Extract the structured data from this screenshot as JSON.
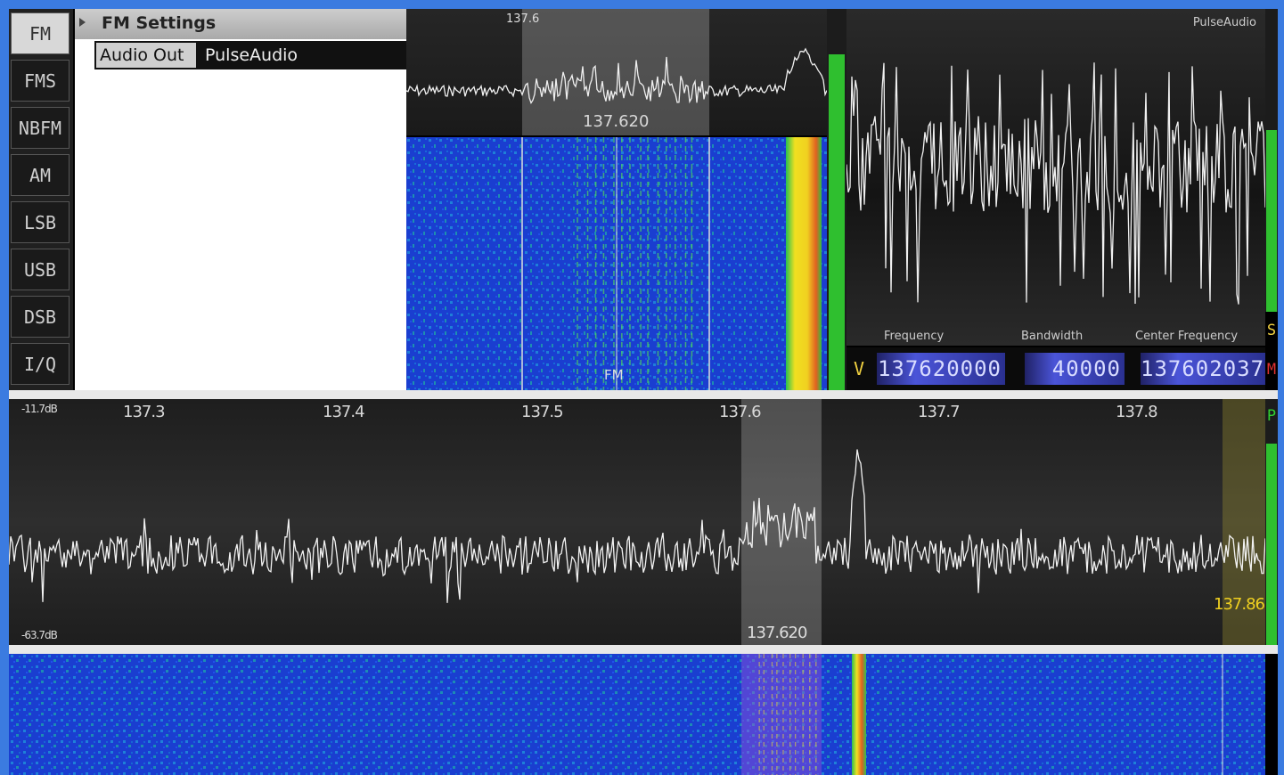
{
  "modes": [
    "FM",
    "FMS",
    "NBFM",
    "AM",
    "LSB",
    "USB",
    "DSB",
    "I/Q"
  ],
  "active_mode": "FM",
  "settings": {
    "title": "FM Settings",
    "rows": [
      {
        "key": "Audio Out",
        "value": "PulseAudio"
      }
    ]
  },
  "demod_view": {
    "top_tick": "137.6",
    "center_freq_label": "137.620",
    "mode_label": "FM"
  },
  "audio_scope": {
    "device_label": "PulseAudio"
  },
  "freq_controls": {
    "labels": {
      "frequency": "Frequency",
      "bandwidth": "Bandwidth",
      "center": "Center Frequency"
    },
    "v_label": "V",
    "frequency": "137620000",
    "bandwidth": "40000",
    "center_frequency": "137602037",
    "m_label": "M",
    "s_label": "S",
    "p_label": "P"
  },
  "main_spectrum": {
    "db_top": "-11.7dB",
    "db_bottom": "-63.7dB",
    "ticks": [
      "137.3",
      "137.4",
      "137.5",
      "137.6",
      "137.7",
      "137.8"
    ],
    "center_label": "137.620",
    "yellow_label": "137.86"
  },
  "meters": {
    "demod_level": 0.88,
    "audio_level": 0.6,
    "main_level": 0.82
  },
  "colors": {
    "accent_green": "#2fbf2f",
    "digits_blue": "#4a54d8",
    "waterfall_blue": "#1b3fd0",
    "signal_yellow": "#f0e020"
  }
}
